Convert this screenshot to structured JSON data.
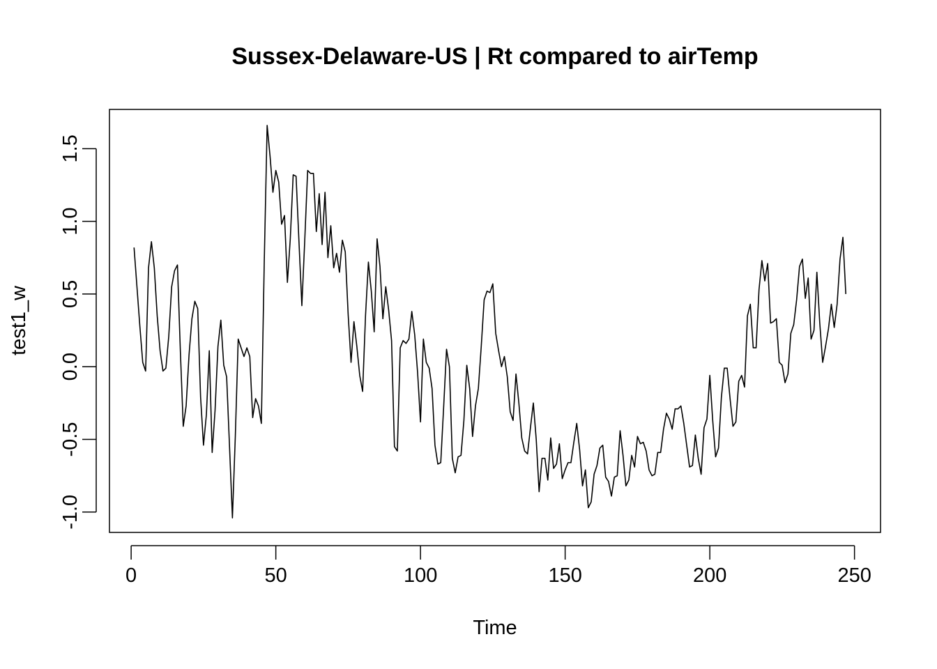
{
  "chart_data": {
    "type": "line",
    "title": "Sussex-Delaware-US | Rt compared to airTemp",
    "xlabel": "Time",
    "ylabel": "test1_w",
    "xlim": [
      -7.5,
      259
    ],
    "ylim": [
      -1.14,
      1.77
    ],
    "x_ticks": [
      0,
      50,
      100,
      150,
      200,
      250
    ],
    "y_ticks": [
      -1.0,
      -0.5,
      0.0,
      0.5,
      1.0,
      1.5
    ],
    "x_tick_labels": [
      "0",
      "50",
      "100",
      "150",
      "200",
      "250"
    ],
    "y_tick_labels": [
      "-1.0",
      "-0.5",
      "0.0",
      "0.5",
      "1.0",
      "1.5"
    ],
    "grid": false,
    "series": [
      {
        "color": "#000000",
        "x_start": 1,
        "values": [
          0.82,
          0.55,
          0.28,
          0.03,
          -0.03,
          0.68,
          0.86,
          0.68,
          0.35,
          0.11,
          -0.03,
          -0.01,
          0.21,
          0.55,
          0.66,
          0.7,
          0.11,
          -0.41,
          -0.27,
          0.08,
          0.33,
          0.45,
          0.4,
          -0.21,
          -0.54,
          -0.33,
          0.11,
          -0.59,
          -0.3,
          0.14,
          0.32,
          0.01,
          -0.07,
          -0.55,
          -1.04,
          -0.48,
          0.19,
          0.13,
          0.07,
          0.13,
          0.07,
          -0.35,
          -0.22,
          -0.27,
          -0.39,
          0.72,
          1.66,
          1.45,
          1.2,
          1.35,
          1.27,
          0.98,
          1.04,
          0.58,
          0.88,
          1.32,
          1.31,
          0.86,
          0.42,
          0.87,
          1.35,
          1.33,
          1.33,
          0.93,
          1.19,
          0.84,
          1.2,
          0.75,
          0.97,
          0.68,
          0.78,
          0.65,
          0.87,
          0.79,
          0.36,
          0.03,
          0.31,
          0.14,
          -0.06,
          -0.17,
          0.35,
          0.72,
          0.52,
          0.24,
          0.88,
          0.69,
          0.33,
          0.55,
          0.39,
          0.18,
          -0.55,
          -0.58,
          0.13,
          0.18,
          0.16,
          0.19,
          0.38,
          0.22,
          -0.04,
          -0.38,
          0.19,
          0.03,
          -0.01,
          -0.15,
          -0.54,
          -0.67,
          -0.66,
          -0.28,
          0.12,
          0.0,
          -0.63,
          -0.73,
          -0.62,
          -0.61,
          -0.37,
          0.01,
          -0.15,
          -0.48,
          -0.27,
          -0.15,
          0.14,
          0.46,
          0.52,
          0.51,
          0.57,
          0.23,
          0.11,
          0.0,
          0.07,
          -0.07,
          -0.31,
          -0.37,
          -0.05,
          -0.25,
          -0.49,
          -0.58,
          -0.6,
          -0.42,
          -0.25,
          -0.5,
          -0.86,
          -0.63,
          -0.63,
          -0.78,
          -0.49,
          -0.7,
          -0.67,
          -0.53,
          -0.77,
          -0.71,
          -0.66,
          -0.66,
          -0.52,
          -0.39,
          -0.57,
          -0.82,
          -0.71,
          -0.97,
          -0.93,
          -0.74,
          -0.68,
          -0.56,
          -0.54,
          -0.76,
          -0.79,
          -0.89,
          -0.76,
          -0.75,
          -0.44,
          -0.61,
          -0.82,
          -0.78,
          -0.61,
          -0.69,
          -0.48,
          -0.53,
          -0.52,
          -0.58,
          -0.71,
          -0.75,
          -0.74,
          -0.59,
          -0.59,
          -0.43,
          -0.32,
          -0.36,
          -0.43,
          -0.29,
          -0.29,
          -0.27,
          -0.39,
          -0.54,
          -0.69,
          -0.68,
          -0.47,
          -0.63,
          -0.74,
          -0.42,
          -0.36,
          -0.06,
          -0.37,
          -0.62,
          -0.56,
          -0.21,
          -0.01,
          -0.01,
          -0.22,
          -0.41,
          -0.38,
          -0.1,
          -0.06,
          -0.14,
          0.35,
          0.43,
          0.13,
          0.13,
          0.53,
          0.73,
          0.59,
          0.71,
          0.3,
          0.31,
          0.33,
          0.03,
          0.01,
          -0.11,
          -0.05,
          0.23,
          0.29,
          0.46,
          0.69,
          0.74,
          0.47,
          0.61,
          0.19,
          0.25,
          0.65,
          0.3,
          0.03,
          0.14,
          0.26,
          0.43,
          0.27,
          0.43,
          0.74,
          0.89,
          0.5
        ]
      }
    ]
  }
}
